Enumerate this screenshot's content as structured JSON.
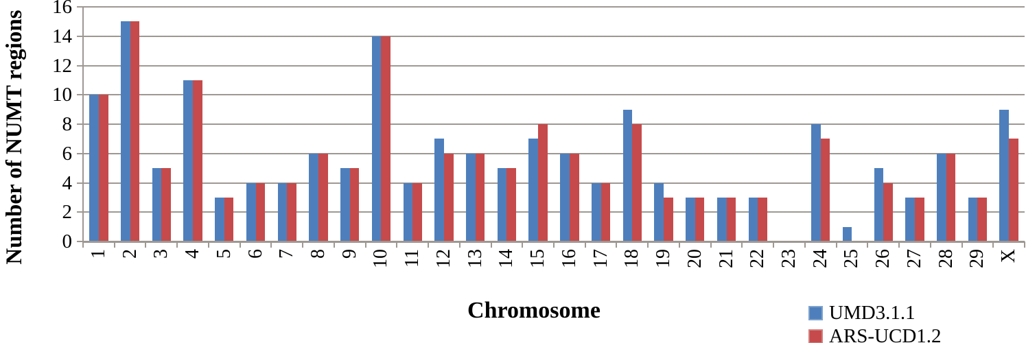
{
  "chart_data": {
    "type": "bar",
    "title": "",
    "xlabel": "Chromosome",
    "ylabel": "Number of NUMT regions",
    "categories": [
      "1",
      "2",
      "3",
      "4",
      "5",
      "6",
      "7",
      "8",
      "9",
      "10",
      "11",
      "12",
      "13",
      "14",
      "15",
      "16",
      "17",
      "18",
      "19",
      "20",
      "21",
      "22",
      "23",
      "24",
      "25",
      "26",
      "27",
      "28",
      "29",
      "X"
    ],
    "series": [
      {
        "name": "UMD3.1.1",
        "color": "#4e7fbc",
        "values": [
          10,
          15,
          5,
          11,
          3,
          4,
          4,
          6,
          5,
          14,
          4,
          7,
          6,
          5,
          7,
          6,
          4,
          9,
          4,
          3,
          3,
          3,
          0,
          8,
          1,
          5,
          3,
          6,
          3,
          9
        ]
      },
      {
        "name": "ARS-UCD1.2",
        "color": "#c64a4b",
        "values": [
          10,
          15,
          5,
          11,
          3,
          4,
          4,
          6,
          5,
          14,
          4,
          6,
          6,
          5,
          8,
          6,
          4,
          8,
          3,
          3,
          3,
          3,
          0,
          7,
          0,
          4,
          3,
          6,
          3,
          7
        ]
      }
    ],
    "ylim": [
      0,
      16
    ],
    "yticks": [
      0,
      2,
      4,
      6,
      8,
      10,
      12,
      14,
      16
    ],
    "grid": true,
    "legend_position": "bottom-right"
  },
  "colors": {
    "grid": "#9e9893",
    "axis": "#9e9893",
    "text": "#000000",
    "background": "#ffffff"
  }
}
